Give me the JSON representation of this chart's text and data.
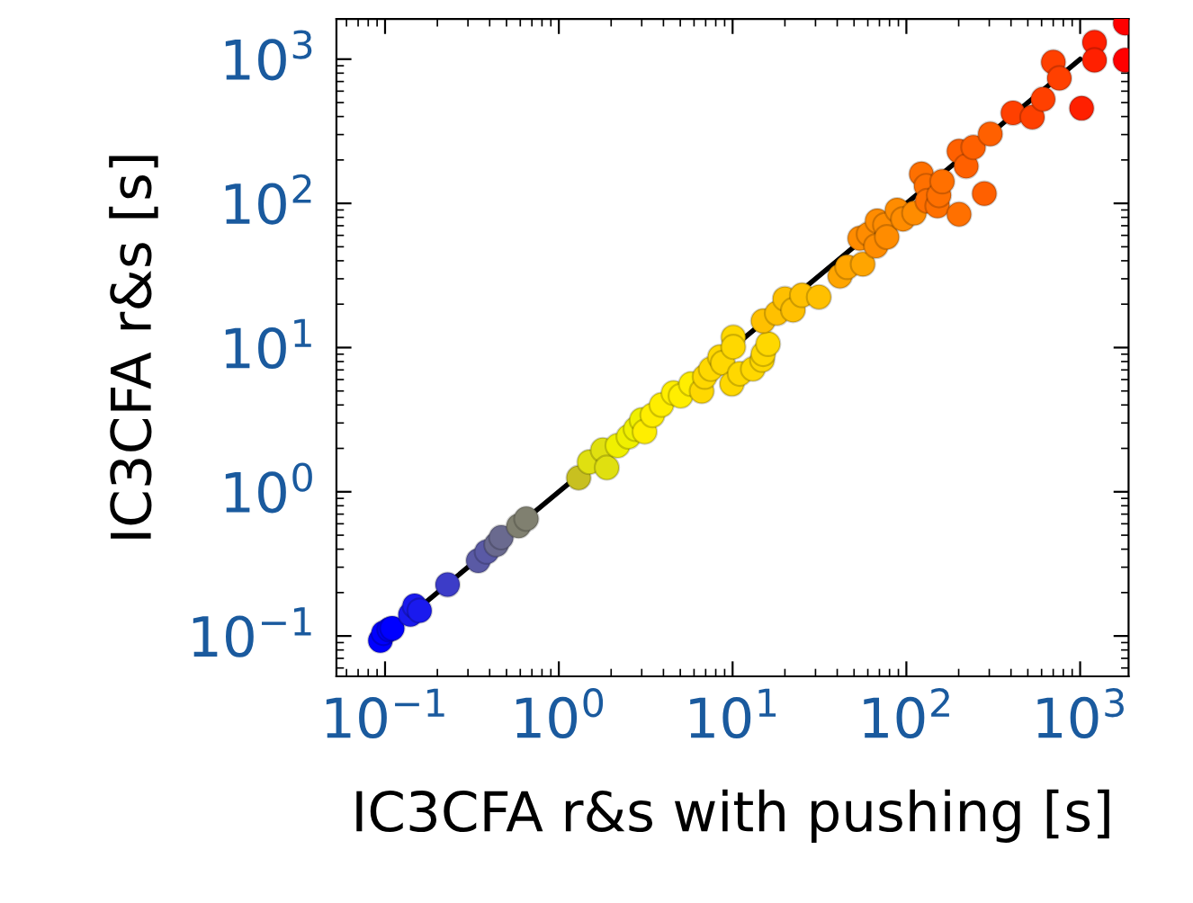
{
  "chart_data": {
    "type": "scatter",
    "xlabel": "IC3CFA r&s with pushing [s]",
    "ylabel": "IC3CFA r&s [s]",
    "log": "xy",
    "grid": false,
    "xlim": [
      0.0525,
      1900
    ],
    "ylim": [
      0.0525,
      1900
    ],
    "xticks": [
      {
        "value": 0.1,
        "label": "10$^{−1}$"
      },
      {
        "value": 1,
        "label": "10$^{0}$"
      },
      {
        "value": 10,
        "label": "10$^{1}$"
      },
      {
        "value": 100,
        "label": "10$^{2}$"
      },
      {
        "value": 1000,
        "label": "10$^{3}$"
      }
    ],
    "yticks": [
      {
        "value": 0.1,
        "label": "10$^{−1}$"
      },
      {
        "value": 1,
        "label": "10$^{0}$"
      },
      {
        "value": 10,
        "label": "10$^{1}$"
      },
      {
        "value": 100,
        "label": "10$^{2}$"
      },
      {
        "value": 1000,
        "label": "10$^{3}$"
      }
    ],
    "series": [
      {
        "type": "line",
        "marker": "none",
        "color": "#000000",
        "x": [
          0.1,
          1000
        ],
        "values": [
          0.1,
          1000
        ]
      },
      {
        "marker": "circle",
        "x": [
          0.094,
          0.098,
          0.106,
          0.11,
          0.14,
          0.148,
          0.158,
          0.229,
          0.344,
          0.385,
          0.437,
          0.466,
          0.587,
          0.65,
          1.3,
          1.5,
          1.79,
          1.89,
          2.18,
          2.52,
          2.77,
          3.0,
          3.12,
          3.46,
          3.9,
          4.57,
          5.03,
          5.76,
          6.65,
          6.92,
          7.5,
          8.45,
          8.79,
          10.1,
          9.91,
          11.0,
          13.1,
          14.8,
          15.0,
          16.0,
          10.1,
          15.0,
          18.0,
          20.0,
          22.3,
          25.1,
          31.4,
          41.5,
          45.7,
          56.2,
          54.0,
          60.8,
          66.9,
          68.0,
          75.5,
          77.3,
          88.5,
          95.7,
          111,
          122,
          130,
          132,
          151,
          154,
          161,
          201,
          201,
          221,
          243,
          281,
          304,
          411,
          531,
          612,
          701,
          759,
          1020,
          1210,
          1210,
          1820,
          1820
        ],
        "values": [
          0.093,
          0.105,
          0.111,
          0.113,
          0.141,
          0.162,
          0.15,
          0.227,
          0.333,
          0.384,
          0.431,
          0.483,
          0.58,
          0.65,
          1.25,
          1.61,
          1.95,
          1.47,
          2.09,
          2.41,
          2.73,
          3.15,
          2.61,
          3.4,
          4.01,
          4.85,
          4.62,
          5.6,
          4.99,
          6.28,
          7.11,
          8.61,
          7.83,
          11.8,
          5.6,
          6.59,
          7.11,
          8.21,
          9.04,
          10.6,
          10.1,
          15.3,
          17.3,
          21.8,
          18.2,
          23.1,
          22.4,
          31.3,
          36.2,
          37.9,
          57.3,
          61.3,
          50.6,
          75.6,
          70.8,
          58.4,
          89.8,
          77.8,
          85.7,
          160,
          132,
          104,
          96.1,
          114,
          142,
          84.0,
          230,
          181,
          245,
          117,
          303,
          424,
          396,
          528,
          955,
          738,
          457,
          1310,
          984,
          1780,
          984
        ],
        "colors": [
          "#0000ff",
          "#0000ff",
          "#0000ff",
          "#0000ff",
          "#1a1aee",
          "#1a1aee",
          "#1a1aee",
          "#3c3cc8",
          "#5a5aa5",
          "#5a5aa5",
          "#6a6a8f",
          "#6a6a8f",
          "#808070",
          "#808070",
          "#c8c020",
          "#e0e010",
          "#e0e010",
          "#e0e010",
          "#f0f000",
          "#f0f000",
          "#f0f000",
          "#f0f000",
          "#ffee00",
          "#ffee00",
          "#ffee00",
          "#ffee00",
          "#ffee00",
          "#ffee00",
          "#ffd800",
          "#ffd800",
          "#ffd800",
          "#ffd800",
          "#ffd800",
          "#ffd800",
          "#ffd800",
          "#ffd800",
          "#ffd800",
          "#ffd800",
          "#ffd800",
          "#ffd800",
          "#ffd800",
          "#ffc000",
          "#ffc000",
          "#ffc000",
          "#ffc000",
          "#ffc000",
          "#ffc000",
          "#ffa500",
          "#ffa500",
          "#ffa500",
          "#ff8c00",
          "#ff8c00",
          "#ff8c00",
          "#ff8c00",
          "#ff8c00",
          "#ff8c00",
          "#ff8c00",
          "#ff8c00",
          "#ff8c00",
          "#ff7000",
          "#ff7000",
          "#ff7000",
          "#ff7000",
          "#ff7000",
          "#ff7000",
          "#ff7000",
          "#ff6000",
          "#ff6000",
          "#ff6000",
          "#ff6000",
          "#ff6000",
          "#ff4000",
          "#ff4000",
          "#ff4000",
          "#ff4000",
          "#ff4000",
          "#ff2000",
          "#ff2000",
          "#ff2000",
          "#ff0000",
          "#ff0000"
        ]
      }
    ]
  }
}
